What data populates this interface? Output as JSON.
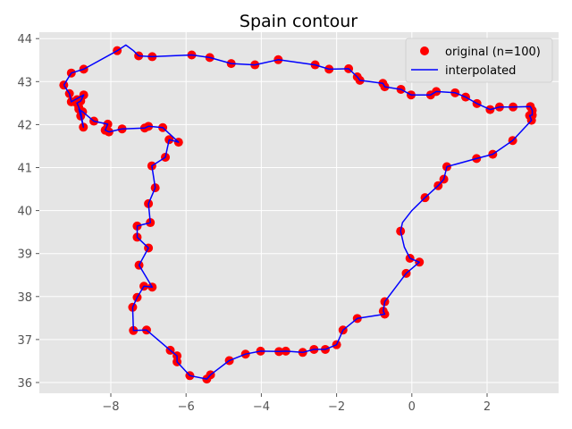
{
  "chart_data": {
    "type": "line",
    "title": "Spain contour",
    "xlabel": "",
    "ylabel": "",
    "xlim": [
      -9.9,
      3.9
    ],
    "ylim": [
      35.75,
      44.15
    ],
    "xticks": [
      -8,
      -6,
      -4,
      -2,
      0,
      2
    ],
    "xtick_labels": [
      "−8",
      "−6",
      "−4",
      "−2",
      "0",
      "2"
    ],
    "yticks": [
      36,
      37,
      38,
      39,
      40,
      41,
      42,
      43,
      44
    ],
    "ytick_labels": [
      "36",
      "37",
      "38",
      "39",
      "40",
      "41",
      "42",
      "43",
      "44"
    ],
    "grid": true,
    "legend_position": "top-right",
    "colors": {
      "background": "#e5e5e5",
      "grid": "#ffffff",
      "points": "#ff0000",
      "line": "#0000ff"
    },
    "series": [
      {
        "name": "original (n=100)",
        "marker": "circle",
        "points": [
          [
            -9.25,
            42.92
          ],
          [
            -9.05,
            43.2
          ],
          [
            -8.72,
            43.29
          ],
          [
            -7.83,
            43.72
          ],
          [
            -7.26,
            43.6
          ],
          [
            -6.9,
            43.58
          ],
          [
            -5.85,
            43.62
          ],
          [
            -5.37,
            43.56
          ],
          [
            -4.8,
            43.42
          ],
          [
            -4.17,
            43.39
          ],
          [
            -3.55,
            43.51
          ],
          [
            -2.57,
            43.39
          ],
          [
            -2.2,
            43.29
          ],
          [
            -1.68,
            43.3
          ],
          [
            -1.45,
            43.11
          ],
          [
            -1.38,
            43.03
          ],
          [
            -0.77,
            42.96
          ],
          [
            -0.72,
            42.88
          ],
          [
            -0.29,
            42.82
          ],
          [
            -0.02,
            42.69
          ],
          [
            0.5,
            42.69
          ],
          [
            0.65,
            42.77
          ],
          [
            1.15,
            42.74
          ],
          [
            1.43,
            42.64
          ],
          [
            1.73,
            42.49
          ],
          [
            2.08,
            42.35
          ],
          [
            2.33,
            42.41
          ],
          [
            2.69,
            42.41
          ],
          [
            3.15,
            42.42
          ],
          [
            3.2,
            42.33
          ],
          [
            3.2,
            42.22
          ],
          [
            3.13,
            42.21
          ],
          [
            3.18,
            42.1
          ],
          [
            2.68,
            41.63
          ],
          [
            2.15,
            41.31
          ],
          [
            1.72,
            41.21
          ],
          [
            0.93,
            41.02
          ],
          [
            0.85,
            40.73
          ],
          [
            0.7,
            40.58
          ],
          [
            0.35,
            40.3
          ],
          [
            -0.3,
            39.52
          ],
          [
            -0.05,
            38.89
          ],
          [
            0.2,
            38.8
          ],
          [
            -0.15,
            38.54
          ],
          [
            -0.72,
            37.88
          ],
          [
            -0.76,
            37.66
          ],
          [
            -0.72,
            37.59
          ],
          [
            -1.45,
            37.49
          ],
          [
            -1.83,
            37.22
          ],
          [
            -2.0,
            36.88
          ],
          [
            -2.3,
            36.77
          ],
          [
            -2.6,
            36.77
          ],
          [
            -2.9,
            36.7
          ],
          [
            -3.35,
            36.73
          ],
          [
            -3.53,
            36.72
          ],
          [
            -4.42,
            36.66
          ],
          [
            -4.02,
            36.73
          ],
          [
            -4.85,
            36.51
          ],
          [
            -5.35,
            36.18
          ],
          [
            -5.45,
            36.08
          ],
          [
            -5.9,
            36.16
          ],
          [
            -6.24,
            36.48
          ],
          [
            -6.24,
            36.62
          ],
          [
            -6.42,
            36.75
          ],
          [
            -7.05,
            37.22
          ],
          [
            -7.4,
            37.21
          ],
          [
            -7.42,
            37.75
          ],
          [
            -7.3,
            37.98
          ],
          [
            -7.12,
            38.24
          ],
          [
            -6.9,
            38.22
          ],
          [
            -7.25,
            38.73
          ],
          [
            -7.0,
            39.13
          ],
          [
            -7.3,
            39.38
          ],
          [
            -7.3,
            39.64
          ],
          [
            -6.95,
            39.72
          ],
          [
            -7.0,
            40.16
          ],
          [
            -6.82,
            40.53
          ],
          [
            -6.91,
            41.04
          ],
          [
            -6.55,
            41.24
          ],
          [
            -6.45,
            41.65
          ],
          [
            -6.2,
            41.59
          ],
          [
            -6.62,
            41.93
          ],
          [
            -7.0,
            41.96
          ],
          [
            -7.1,
            41.92
          ],
          [
            -7.7,
            41.9
          ],
          [
            -8.05,
            41.83
          ],
          [
            -8.15,
            41.87
          ],
          [
            -8.08,
            42.01
          ],
          [
            -8.45,
            42.08
          ],
          [
            -8.75,
            42.3
          ],
          [
            -8.85,
            42.36
          ],
          [
            -8.8,
            42.2
          ],
          [
            -8.73,
            41.94
          ],
          [
            -8.9,
            42.5
          ],
          [
            -8.8,
            42.55
          ],
          [
            -8.72,
            42.69
          ],
          [
            -9.05,
            42.53
          ],
          [
            -9.1,
            42.72
          ],
          [
            -8.9,
            42.58
          ],
          [
            -8.85,
            42.4
          ]
        ]
      },
      {
        "name": "interpolated",
        "marker": "line",
        "points": [
          [
            -9.25,
            42.92
          ],
          [
            -9.05,
            43.2
          ],
          [
            -8.72,
            43.29
          ],
          [
            -7.83,
            43.72
          ],
          [
            -7.6,
            43.85
          ],
          [
            -7.4,
            43.72
          ],
          [
            -7.26,
            43.6
          ],
          [
            -6.9,
            43.58
          ],
          [
            -5.85,
            43.62
          ],
          [
            -5.37,
            43.56
          ],
          [
            -4.8,
            43.42
          ],
          [
            -4.17,
            43.39
          ],
          [
            -3.55,
            43.51
          ],
          [
            -2.57,
            43.39
          ],
          [
            -2.2,
            43.29
          ],
          [
            -1.68,
            43.3
          ],
          [
            -1.45,
            43.11
          ],
          [
            -1.38,
            43.03
          ],
          [
            -0.77,
            42.96
          ],
          [
            -0.72,
            42.88
          ],
          [
            -0.29,
            42.82
          ],
          [
            -0.02,
            42.69
          ],
          [
            0.5,
            42.69
          ],
          [
            0.65,
            42.77
          ],
          [
            1.15,
            42.74
          ],
          [
            1.43,
            42.64
          ],
          [
            1.73,
            42.49
          ],
          [
            2.08,
            42.35
          ],
          [
            2.33,
            42.41
          ],
          [
            2.69,
            42.41
          ],
          [
            3.15,
            42.42
          ],
          [
            3.2,
            42.33
          ],
          [
            3.2,
            42.22
          ],
          [
            3.13,
            42.21
          ],
          [
            3.18,
            42.1
          ],
          [
            2.68,
            41.63
          ],
          [
            2.15,
            41.31
          ],
          [
            1.72,
            41.21
          ],
          [
            0.93,
            41.02
          ],
          [
            0.85,
            40.73
          ],
          [
            0.7,
            40.58
          ],
          [
            0.35,
            40.3
          ],
          [
            0.0,
            40.0
          ],
          [
            -0.25,
            39.72
          ],
          [
            -0.3,
            39.52
          ],
          [
            -0.2,
            39.15
          ],
          [
            -0.05,
            38.89
          ],
          [
            0.2,
            38.8
          ],
          [
            -0.15,
            38.54
          ],
          [
            -0.72,
            37.88
          ],
          [
            -0.76,
            37.66
          ],
          [
            -0.72,
            37.59
          ],
          [
            -1.45,
            37.49
          ],
          [
            -1.83,
            37.22
          ],
          [
            -2.0,
            36.88
          ],
          [
            -2.3,
            36.77
          ],
          [
            -2.6,
            36.77
          ],
          [
            -2.9,
            36.7
          ],
          [
            -3.35,
            36.73
          ],
          [
            -3.53,
            36.72
          ],
          [
            -4.02,
            36.73
          ],
          [
            -4.42,
            36.66
          ],
          [
            -4.85,
            36.51
          ],
          [
            -5.35,
            36.18
          ],
          [
            -5.45,
            36.08
          ],
          [
            -5.9,
            36.16
          ],
          [
            -6.24,
            36.48
          ],
          [
            -6.24,
            36.62
          ],
          [
            -6.42,
            36.75
          ],
          [
            -7.05,
            37.22
          ],
          [
            -7.4,
            37.21
          ],
          [
            -7.42,
            37.75
          ],
          [
            -7.3,
            37.98
          ],
          [
            -7.12,
            38.24
          ],
          [
            -6.9,
            38.22
          ],
          [
            -7.25,
            38.73
          ],
          [
            -7.0,
            39.13
          ],
          [
            -7.3,
            39.38
          ],
          [
            -7.3,
            39.64
          ],
          [
            -6.95,
            39.72
          ],
          [
            -7.0,
            40.16
          ],
          [
            -6.82,
            40.53
          ],
          [
            -6.91,
            41.04
          ],
          [
            -6.55,
            41.24
          ],
          [
            -6.45,
            41.65
          ],
          [
            -6.2,
            41.59
          ],
          [
            -6.62,
            41.93
          ],
          [
            -7.0,
            41.96
          ],
          [
            -7.1,
            41.92
          ],
          [
            -7.7,
            41.9
          ],
          [
            -8.05,
            41.83
          ],
          [
            -8.15,
            41.87
          ],
          [
            -8.08,
            42.01
          ],
          [
            -8.45,
            42.08
          ],
          [
            -8.75,
            42.3
          ],
          [
            -8.85,
            42.36
          ],
          [
            -8.8,
            42.2
          ],
          [
            -8.73,
            41.94
          ],
          [
            -8.8,
            42.3
          ],
          [
            -8.9,
            42.5
          ],
          [
            -8.8,
            42.55
          ],
          [
            -8.72,
            42.69
          ],
          [
            -9.05,
            42.53
          ],
          [
            -9.1,
            42.72
          ],
          [
            -9.25,
            42.92
          ]
        ]
      }
    ]
  }
}
